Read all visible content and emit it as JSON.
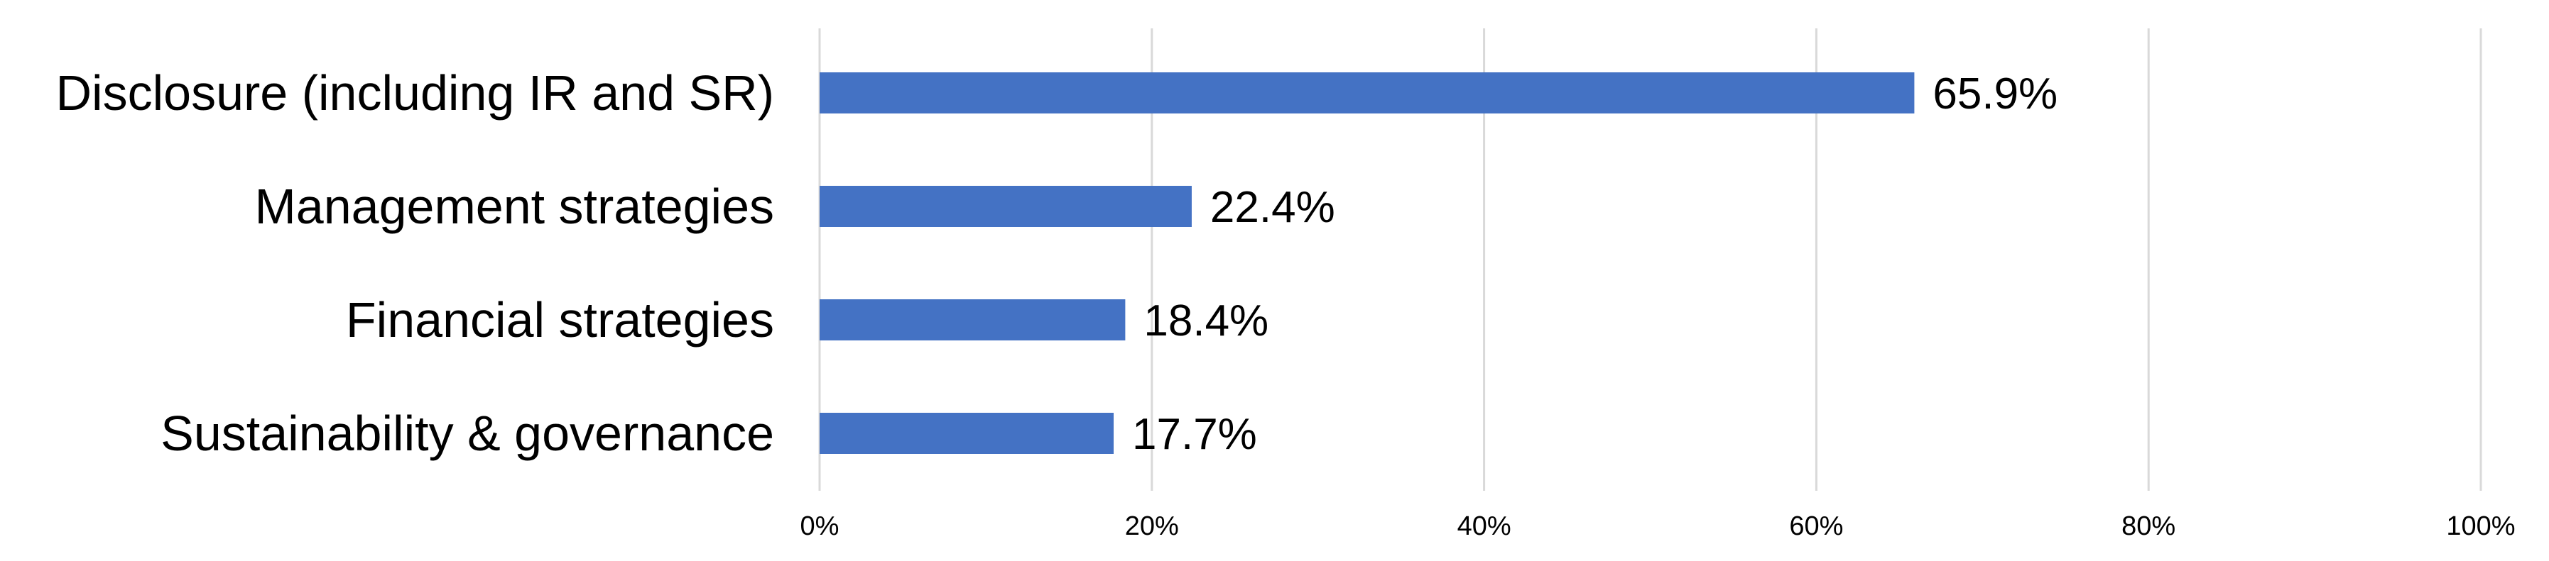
{
  "chart_data": {
    "type": "bar",
    "orientation": "horizontal",
    "categories": [
      "Disclosure (including IR and SR)",
      "Management strategies",
      "Financial strategies",
      "Sustainability & governance"
    ],
    "values": [
      65.9,
      22.4,
      18.4,
      17.7
    ],
    "value_labels": [
      "65.9%",
      "22.4%",
      "18.4%",
      "17.7%"
    ],
    "xlim": [
      0,
      100
    ],
    "xticks": [
      0,
      20,
      40,
      60,
      80,
      100
    ],
    "xtick_labels": [
      "0%",
      "20%",
      "40%",
      "60%",
      "80%",
      "100%"
    ],
    "grid": true,
    "legend": "none",
    "bar_color": "#4472c4"
  }
}
